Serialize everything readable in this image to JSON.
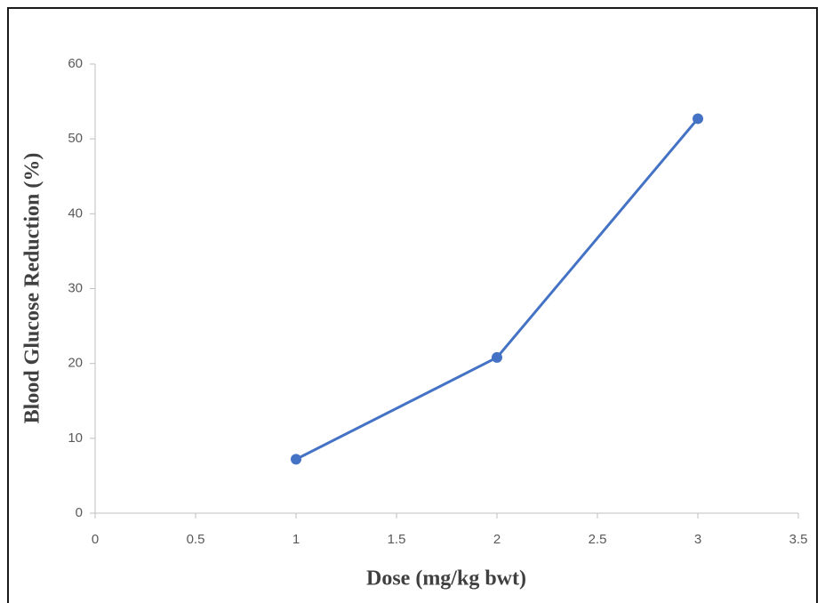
{
  "chart_data": {
    "type": "line",
    "x_label": "Dose (mg/kg bwt)",
    "y_label": "Blood Glucose Reduction (%)",
    "x": [
      1,
      2,
      3
    ],
    "series": [
      {
        "color": "#4472c4",
        "values": [
          7.2,
          20.8,
          52.7
        ]
      }
    ],
    "xlim": [
      0,
      3.5
    ],
    "xticks": [
      0,
      0.5,
      1,
      1.5,
      2,
      2.5,
      3,
      3.5
    ],
    "ylim": [
      0,
      60
    ],
    "yticks": [
      0,
      10,
      20,
      30,
      40,
      50,
      60
    ],
    "grid": false
  }
}
